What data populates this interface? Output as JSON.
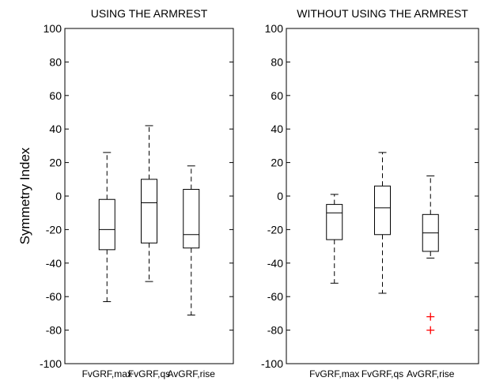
{
  "chart_data": {
    "type": "boxplot",
    "ylabel": "Symmetry Index",
    "ylim": [
      -100,
      100
    ],
    "yticks": [
      "100",
      "80",
      "60",
      "40",
      "20",
      "0",
      "-20",
      "-40",
      "-60",
      "-80",
      "-100"
    ],
    "ytick_values": [
      100,
      80,
      60,
      40,
      20,
      0,
      -20,
      -40,
      -60,
      -80,
      -100
    ],
    "grid": false,
    "panels": [
      {
        "title": "USING THE ARMREST",
        "categories": [
          "FvGRF,max",
          "FvGRF,qs",
          "AvGRF,rise"
        ],
        "boxes": [
          {
            "whisker_low": -63,
            "q1": -32,
            "median": -20,
            "q3": -2,
            "whisker_high": 26,
            "outliers": []
          },
          {
            "whisker_low": -51,
            "q1": -28,
            "median": -4,
            "q3": 10,
            "whisker_high": 42,
            "outliers": []
          },
          {
            "whisker_low": -71,
            "q1": -31,
            "median": -23,
            "q3": 4,
            "whisker_high": 18,
            "outliers": []
          }
        ]
      },
      {
        "title": "WITHOUT USING THE ARMREST",
        "categories": [
          "FvGRF,max",
          "FvGRF,qs",
          "AvGRF,rise"
        ],
        "boxes": [
          {
            "whisker_low": -52,
            "q1": -26,
            "median": -10,
            "q3": -5,
            "whisker_high": 1,
            "outliers": []
          },
          {
            "whisker_low": -58,
            "q1": -23,
            "median": -7,
            "q3": 6,
            "whisker_high": 26,
            "outliers": []
          },
          {
            "whisker_low": -37,
            "q1": -33,
            "median": -22,
            "q3": -11,
            "whisker_high": 12,
            "outliers": [
              -72,
              -80
            ]
          }
        ]
      }
    ],
    "colors": {
      "box": "#000000",
      "median": "#000000",
      "whisker": "#000000",
      "outlier": "#ff0000"
    }
  }
}
